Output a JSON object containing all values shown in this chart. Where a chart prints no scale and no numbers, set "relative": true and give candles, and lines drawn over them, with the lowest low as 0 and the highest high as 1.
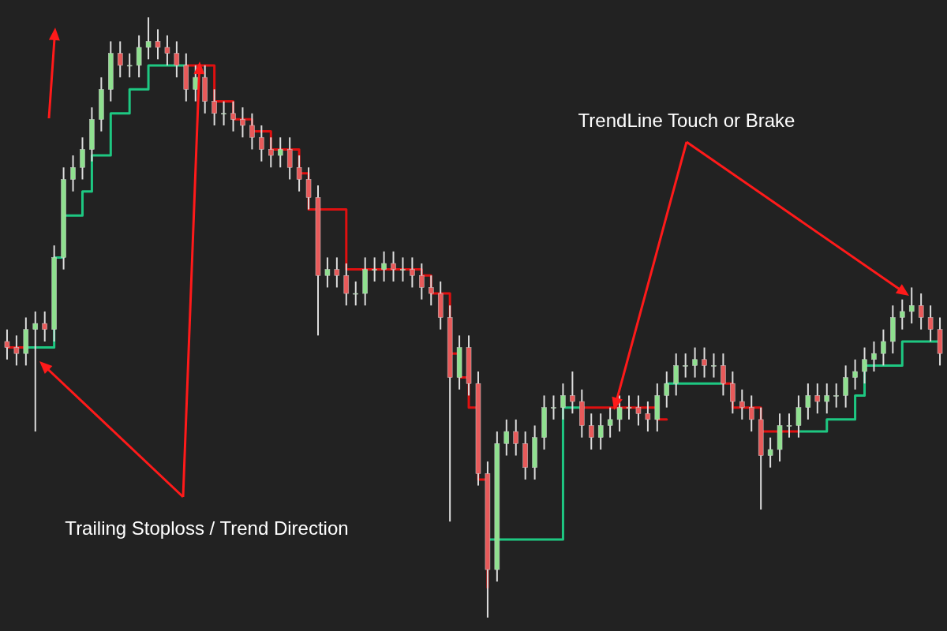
{
  "chart_data": {
    "type": "candlestick",
    "relative": true,
    "categories": [
      null,
      null,
      null,
      null,
      null,
      null,
      null,
      null,
      null,
      null,
      null,
      null,
      null,
      null,
      null,
      null,
      null,
      null,
      null,
      null,
      null,
      null,
      null,
      null,
      null,
      null,
      null,
      null,
      null,
      null,
      null,
      null,
      null,
      null,
      null,
      null,
      null,
      null,
      null,
      null,
      null,
      null,
      null,
      null,
      null,
      null,
      null,
      null,
      null,
      null,
      null,
      null,
      null,
      null,
      null,
      null,
      null,
      null,
      null,
      null,
      null,
      null,
      null,
      null,
      null,
      null,
      null,
      null,
      null,
      null,
      null,
      null,
      null,
      null,
      null,
      null,
      null,
      null,
      null,
      null,
      null,
      null,
      null,
      null,
      null,
      null,
      null,
      null,
      null,
      null,
      null,
      null,
      null,
      null,
      null,
      null,
      null,
      null,
      null,
      null
    ],
    "ohlc": [
      [
        0.46,
        0.48,
        0.43,
        0.45
      ],
      [
        0.45,
        0.47,
        0.42,
        0.44
      ],
      [
        0.44,
        0.5,
        0.42,
        0.48
      ],
      [
        0.48,
        0.51,
        0.31,
        0.49
      ],
      [
        0.49,
        0.51,
        0.46,
        0.48
      ],
      [
        0.48,
        0.62,
        0.46,
        0.6
      ],
      [
        0.6,
        0.75,
        0.58,
        0.73
      ],
      [
        0.73,
        0.77,
        0.71,
        0.75
      ],
      [
        0.75,
        0.8,
        0.73,
        0.78
      ],
      [
        0.78,
        0.85,
        0.76,
        0.83
      ],
      [
        0.83,
        0.9,
        0.81,
        0.88
      ],
      [
        0.88,
        0.96,
        0.86,
        0.94
      ],
      [
        0.94,
        0.96,
        0.9,
        0.92
      ],
      [
        0.92,
        0.94,
        0.9,
        0.92
      ],
      [
        0.92,
        0.97,
        0.9,
        0.95
      ],
      [
        0.95,
        1.0,
        0.93,
        0.96
      ],
      [
        0.96,
        0.98,
        0.93,
        0.95
      ],
      [
        0.95,
        0.97,
        0.92,
        0.94
      ],
      [
        0.94,
        0.96,
        0.9,
        0.92
      ],
      [
        0.92,
        0.94,
        0.86,
        0.88
      ],
      [
        0.88,
        0.92,
        0.86,
        0.9
      ],
      [
        0.9,
        0.92,
        0.84,
        0.86
      ],
      [
        0.86,
        0.88,
        0.82,
        0.84
      ],
      [
        0.84,
        0.86,
        0.82,
        0.84
      ],
      [
        0.84,
        0.86,
        0.81,
        0.83
      ],
      [
        0.83,
        0.85,
        0.8,
        0.82
      ],
      [
        0.82,
        0.84,
        0.78,
        0.8
      ],
      [
        0.8,
        0.82,
        0.76,
        0.78
      ],
      [
        0.78,
        0.8,
        0.75,
        0.77
      ],
      [
        0.77,
        0.8,
        0.75,
        0.78
      ],
      [
        0.78,
        0.8,
        0.73,
        0.75
      ],
      [
        0.75,
        0.77,
        0.71,
        0.73
      ],
      [
        0.73,
        0.75,
        0.68,
        0.7
      ],
      [
        0.7,
        0.72,
        0.47,
        0.57
      ],
      [
        0.57,
        0.6,
        0.55,
        0.58
      ],
      [
        0.58,
        0.6,
        0.55,
        0.57
      ],
      [
        0.57,
        0.59,
        0.52,
        0.54
      ],
      [
        0.54,
        0.56,
        0.52,
        0.54
      ],
      [
        0.54,
        0.6,
        0.52,
        0.58
      ],
      [
        0.58,
        0.6,
        0.56,
        0.58
      ],
      [
        0.58,
        0.61,
        0.56,
        0.59
      ],
      [
        0.59,
        0.61,
        0.56,
        0.58
      ],
      [
        0.58,
        0.6,
        0.56,
        0.58
      ],
      [
        0.58,
        0.6,
        0.55,
        0.57
      ],
      [
        0.57,
        0.59,
        0.53,
        0.55
      ],
      [
        0.55,
        0.57,
        0.52,
        0.54
      ],
      [
        0.54,
        0.56,
        0.48,
        0.5
      ],
      [
        0.5,
        0.52,
        0.16,
        0.4
      ],
      [
        0.4,
        0.47,
        0.38,
        0.45
      ],
      [
        0.45,
        0.47,
        0.37,
        0.39
      ],
      [
        0.39,
        0.41,
        0.22,
        0.24
      ],
      [
        0.24,
        0.26,
        0.0,
        0.08
      ],
      [
        0.08,
        0.31,
        0.06,
        0.29
      ],
      [
        0.29,
        0.33,
        0.27,
        0.31
      ],
      [
        0.31,
        0.33,
        0.27,
        0.29
      ],
      [
        0.29,
        0.31,
        0.23,
        0.25
      ],
      [
        0.25,
        0.32,
        0.23,
        0.3
      ],
      [
        0.3,
        0.37,
        0.28,
        0.35
      ],
      [
        0.35,
        0.37,
        0.33,
        0.35
      ],
      [
        0.35,
        0.39,
        0.33,
        0.37
      ],
      [
        0.37,
        0.41,
        0.34,
        0.36
      ],
      [
        0.36,
        0.38,
        0.3,
        0.32
      ],
      [
        0.32,
        0.34,
        0.28,
        0.3
      ],
      [
        0.3,
        0.34,
        0.28,
        0.32
      ],
      [
        0.32,
        0.35,
        0.3,
        0.33
      ],
      [
        0.33,
        0.37,
        0.31,
        0.35
      ],
      [
        0.35,
        0.37,
        0.33,
        0.35
      ],
      [
        0.35,
        0.37,
        0.32,
        0.34
      ],
      [
        0.34,
        0.36,
        0.31,
        0.33
      ],
      [
        0.33,
        0.39,
        0.31,
        0.37
      ],
      [
        0.37,
        0.41,
        0.35,
        0.39
      ],
      [
        0.39,
        0.44,
        0.37,
        0.42
      ],
      [
        0.42,
        0.44,
        0.4,
        0.42
      ],
      [
        0.42,
        0.45,
        0.4,
        0.43
      ],
      [
        0.43,
        0.45,
        0.4,
        0.42
      ],
      [
        0.42,
        0.44,
        0.4,
        0.42
      ],
      [
        0.42,
        0.44,
        0.37,
        0.39
      ],
      [
        0.39,
        0.41,
        0.34,
        0.36
      ],
      [
        0.36,
        0.38,
        0.33,
        0.35
      ],
      [
        0.35,
        0.37,
        0.31,
        0.33
      ],
      [
        0.33,
        0.35,
        0.18,
        0.27
      ],
      [
        0.27,
        0.3,
        0.25,
        0.28
      ],
      [
        0.28,
        0.34,
        0.26,
        0.32
      ],
      [
        0.32,
        0.34,
        0.3,
        0.32
      ],
      [
        0.32,
        0.37,
        0.3,
        0.35
      ],
      [
        0.35,
        0.39,
        0.33,
        0.37
      ],
      [
        0.37,
        0.39,
        0.34,
        0.36
      ],
      [
        0.36,
        0.39,
        0.34,
        0.37
      ],
      [
        0.37,
        0.39,
        0.35,
        0.37
      ],
      [
        0.37,
        0.42,
        0.35,
        0.4
      ],
      [
        0.4,
        0.43,
        0.38,
        0.41
      ],
      [
        0.41,
        0.45,
        0.39,
        0.43
      ],
      [
        0.43,
        0.46,
        0.41,
        0.44
      ],
      [
        0.44,
        0.48,
        0.42,
        0.46
      ],
      [
        0.46,
        0.52,
        0.44,
        0.5
      ],
      [
        0.5,
        0.53,
        0.48,
        0.51
      ],
      [
        0.51,
        0.55,
        0.49,
        0.52
      ],
      [
        0.52,
        0.54,
        0.48,
        0.5
      ],
      [
        0.5,
        0.52,
        0.46,
        0.48
      ],
      [
        0.48,
        0.5,
        0.42,
        0.44
      ]
    ],
    "series": [
      {
        "type": "step",
        "color": "#1ec882",
        "values": [
          null,
          null,
          0.45,
          0.45,
          0.45,
          0.6,
          0.67,
          0.67,
          0.71,
          0.77,
          0.77,
          0.84,
          0.84,
          0.88,
          0.88,
          0.92,
          0.92,
          0.92,
          0.92,
          0.92,
          null,
          null,
          null,
          null,
          null,
          null,
          null,
          null,
          null,
          null,
          null,
          null,
          null,
          null,
          null,
          null,
          null,
          null,
          null,
          null,
          null,
          null,
          null,
          null,
          null,
          null,
          null,
          null,
          null,
          null,
          null,
          0.13,
          0.13,
          0.13,
          0.13,
          0.13,
          0.13,
          0.13,
          0.13,
          0.35,
          0.35,
          0.35,
          null,
          null,
          null,
          null,
          null,
          null,
          null,
          null,
          0.39,
          0.39,
          0.39,
          0.39,
          0.39,
          0.39,
          0.39,
          null,
          null,
          null,
          null,
          null,
          null,
          null,
          0.31,
          0.31,
          0.31,
          0.33,
          0.33,
          0.33,
          0.37,
          0.42,
          0.42,
          0.42,
          0.42,
          0.46,
          0.46,
          0.46,
          0.46,
          0.46
        ]
      },
      {
        "type": "step",
        "color": "#e01010",
        "values": [
          0.45,
          0.45,
          0.45,
          null,
          null,
          null,
          null,
          null,
          null,
          null,
          null,
          null,
          null,
          null,
          null,
          null,
          null,
          null,
          null,
          0.92,
          0.92,
          0.92,
          0.86,
          0.86,
          0.83,
          0.83,
          0.81,
          0.81,
          0.78,
          0.78,
          0.78,
          0.74,
          0.68,
          0.68,
          0.68,
          0.68,
          0.58,
          0.58,
          0.58,
          0.58,
          0.58,
          0.58,
          0.58,
          0.58,
          0.57,
          0.54,
          0.54,
          0.44,
          0.4,
          0.35,
          0.23,
          0.05,
          null,
          null,
          null,
          null,
          null,
          null,
          null,
          null,
          null,
          0.35,
          0.35,
          0.35,
          0.35,
          0.35,
          0.35,
          0.35,
          0.35,
          0.33,
          0.33,
          null,
          null,
          null,
          null,
          null,
          0.39,
          0.35,
          0.35,
          0.35,
          0.31,
          0.31,
          0.31,
          0.31,
          0.31,
          null,
          null,
          null,
          null,
          null,
          null,
          null,
          null,
          null,
          null,
          null,
          null,
          null,
          null,
          null
        ]
      }
    ],
    "annotations": [
      "TrendLine Touch or Brake",
      "Trailing Stoploss / Trend Direction"
    ]
  }
}
